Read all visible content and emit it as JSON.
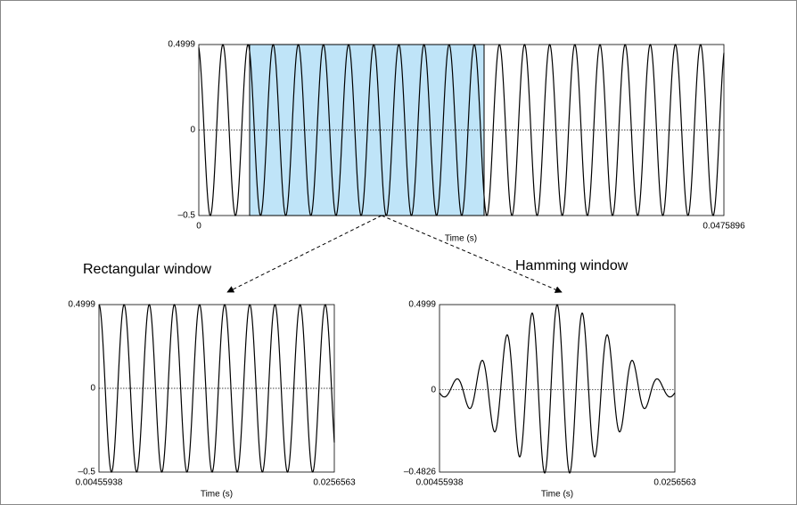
{
  "top_plot": {
    "y_ticks": [
      "0.4999",
      "0",
      "–0.5"
    ],
    "x_ticks": [
      "0",
      "0.0475896"
    ],
    "x_label": "Time (s)"
  },
  "rect_plot": {
    "title": "Rectangular window",
    "y_ticks": [
      "0.4999",
      "0",
      "–0.5"
    ],
    "x_ticks": [
      "0.00455938",
      "0.0256563"
    ],
    "x_label": "Time (s)"
  },
  "hamming_plot": {
    "title": "Hamming window",
    "y_ticks": [
      "0.4999",
      "0",
      "–0.4826"
    ],
    "x_ticks": [
      "0.00455938",
      "0.0256563"
    ],
    "x_label": "Time (s)"
  }
}
